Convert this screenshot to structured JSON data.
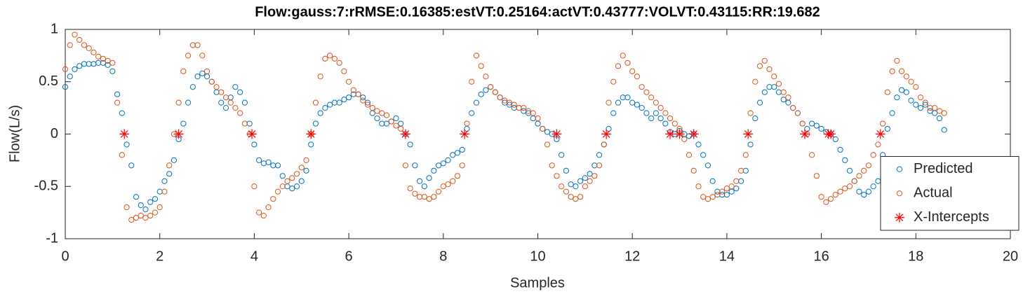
{
  "chart_data": {
    "type": "scatter",
    "title": "Flow:gauss:7:rRMSE:0.16385:estVT:0.25164:actVT:0.43777:VOLVT:0.43115:RR:19.682",
    "xlabel": "Samples",
    "ylabel": "Flow(L/s)",
    "xlim": [
      0,
      20
    ],
    "xticks": [
      0,
      2,
      4,
      6,
      8,
      10,
      12,
      14,
      16,
      18,
      20
    ],
    "ylim": [
      -1,
      1
    ],
    "yticks": [
      -1,
      -0.5,
      0,
      0.5,
      1
    ],
    "grid": false,
    "legend": "southeast",
    "x": [
      0,
      0.1,
      0.2,
      0.3,
      0.4,
      0.5,
      0.6,
      0.7,
      0.8,
      0.9,
      1,
      1.1,
      1.2,
      1.3,
      1.4,
      1.5,
      1.6,
      1.7,
      1.8,
      1.9,
      2,
      2.1,
      2.2,
      2.3,
      2.4,
      2.5,
      2.6,
      2.7,
      2.8,
      2.9,
      3,
      3.1,
      3.2,
      3.3,
      3.4,
      3.5,
      3.6,
      3.7,
      3.8,
      3.9,
      4,
      4.1,
      4.2,
      4.3,
      4.4,
      4.5,
      4.6,
      4.7,
      4.8,
      4.9,
      5,
      5.1,
      5.2,
      5.3,
      5.4,
      5.5,
      5.6,
      5.7,
      5.8,
      5.9,
      6,
      6.1,
      6.2,
      6.3,
      6.4,
      6.5,
      6.6,
      6.7,
      6.8,
      6.9,
      7,
      7.1,
      7.2,
      7.3,
      7.4,
      7.5,
      7.6,
      7.7,
      7.8,
      7.9,
      8,
      8.1,
      8.2,
      8.3,
      8.4,
      8.5,
      8.6,
      8.7,
      8.8,
      8.9,
      9,
      9.1,
      9.2,
      9.3,
      9.4,
      9.5,
      9.6,
      9.7,
      9.8,
      9.9,
      10,
      10.1,
      10.2,
      10.3,
      10.4,
      10.5,
      10.6,
      10.7,
      10.8,
      10.9,
      11,
      11.1,
      11.2,
      11.3,
      11.4,
      11.5,
      11.6,
      11.7,
      11.8,
      11.9,
      12,
      12.1,
      12.2,
      12.3,
      12.4,
      12.5,
      12.6,
      12.7,
      12.8,
      12.9,
      13,
      13.1,
      13.2,
      13.3,
      13.4,
      13.5,
      13.6,
      13.7,
      13.8,
      13.9,
      14,
      14.1,
      14.2,
      14.3,
      14.4,
      14.5,
      14.6,
      14.7,
      14.8,
      14.9,
      15,
      15.1,
      15.2,
      15.3,
      15.4,
      15.5,
      15.6,
      15.7,
      15.8,
      15.9,
      16,
      16.1,
      16.2,
      16.3,
      16.4,
      16.5,
      16.6,
      16.7,
      16.8,
      16.9,
      17,
      17.1,
      17.2,
      17.3,
      17.4,
      17.5,
      17.6,
      17.7,
      17.8,
      17.9,
      18,
      18.1,
      18.2,
      18.3,
      18.4,
      18.5,
      18.6
    ],
    "series": [
      {
        "name": "Predicted",
        "color": "#0072bd",
        "marker": "circle",
        "values": [
          0.45,
          0.55,
          0.62,
          0.65,
          0.67,
          0.67,
          0.67,
          0.68,
          0.68,
          0.66,
          0.6,
          0.38,
          0.2,
          -0.1,
          -0.3,
          -0.6,
          -0.68,
          -0.72,
          -0.65,
          -0.62,
          -0.55,
          -0.45,
          -0.38,
          -0.25,
          -0.05,
          0.1,
          0.3,
          0.45,
          0.55,
          0.58,
          0.55,
          0.5,
          0.4,
          0.3,
          0.25,
          0.35,
          0.45,
          0.4,
          0.3,
          0.1,
          -0.1,
          -0.25,
          -0.28,
          -0.27,
          -0.3,
          -0.3,
          -0.4,
          -0.5,
          -0.52,
          -0.5,
          -0.45,
          -0.35,
          -0.1,
          0.1,
          0.2,
          0.25,
          0.28,
          0.3,
          0.3,
          0.33,
          0.35,
          0.38,
          0.38,
          0.35,
          0.3,
          0.2,
          0.15,
          0.1,
          0.1,
          0.12,
          0.15,
          0.1,
          0,
          -0.1,
          -0.3,
          -0.45,
          -0.5,
          -0.42,
          -0.35,
          -0.3,
          -0.28,
          -0.25,
          -0.2,
          -0.18,
          -0.15,
          0.05,
          0.2,
          0.3,
          0.38,
          0.42,
          0.45,
          0.4,
          0.35,
          0.3,
          0.28,
          0.25,
          0.25,
          0.22,
          0.2,
          0.15,
          0.1,
          0.05,
          0.02,
          0,
          -0.05,
          -0.2,
          -0.35,
          -0.48,
          -0.5,
          -0.45,
          -0.42,
          -0.38,
          -0.3,
          -0.2,
          -0.1,
          0.05,
          0.2,
          0.3,
          0.35,
          0.35,
          0.3,
          0.28,
          0.25,
          0.2,
          0.15,
          0.2,
          0.15,
          0.1,
          0.02,
          0,
          0.03,
          0,
          -0.02,
          0,
          -0.1,
          -0.2,
          -0.3,
          -0.45,
          -0.55,
          -0.58,
          -0.58,
          -0.55,
          -0.52,
          -0.45,
          -0.35,
          -0.1,
          0.15,
          0.3,
          0.4,
          0.45,
          0.45,
          0.4,
          0.33,
          0.3,
          0.25,
          0.2,
          0.1,
          0.05,
          0.1,
          0.08,
          0.05,
          0.02,
          0,
          -0.05,
          -0.15,
          -0.25,
          -0.35,
          -0.45,
          -0.55,
          -0.58,
          -0.55,
          -0.5,
          -0.45,
          -0.2,
          0.05,
          0.2,
          0.35,
          0.42,
          0.4,
          0.32,
          0.28,
          0.25,
          0.28,
          0.22,
          0.2,
          0.15,
          0.04
        ]
      },
      {
        "name": "Actual",
        "color": "#d95319",
        "marker": "circle",
        "values": [
          0.62,
          0.85,
          0.95,
          0.9,
          0.85,
          0.82,
          0.78,
          0.74,
          0.72,
          0.7,
          0.68,
          0.3,
          -0.2,
          -0.7,
          -0.82,
          -0.8,
          -0.78,
          -0.8,
          -0.78,
          -0.75,
          -0.7,
          -0.55,
          -0.3,
          0,
          0.3,
          0.6,
          0.75,
          0.85,
          0.85,
          0.75,
          0.6,
          0.5,
          0.45,
          0.4,
          0.35,
          0.3,
          0.25,
          0.2,
          0.1,
          0,
          -0.5,
          -0.75,
          -0.78,
          -0.7,
          -0.62,
          -0.55,
          -0.5,
          -0.45,
          -0.42,
          -0.38,
          -0.32,
          -0.25,
          0,
          0.3,
          0.55,
          0.72,
          0.75,
          0.72,
          0.68,
          0.6,
          0.5,
          0.42,
          0.38,
          0.32,
          0.28,
          0.25,
          0.22,
          0.2,
          0.18,
          0.12,
          0.08,
          0.05,
          -0.3,
          -0.52,
          -0.57,
          -0.6,
          -0.6,
          -0.62,
          -0.6,
          -0.55,
          -0.5,
          -0.48,
          -0.45,
          -0.4,
          -0.3,
          0.1,
          0.5,
          0.75,
          0.65,
          0.55,
          0.45,
          0.4,
          0.35,
          0.32,
          0.3,
          0.28,
          0.25,
          0.25,
          0.22,
          0.2,
          0.15,
          0.05,
          -0.1,
          -0.3,
          -0.4,
          -0.5,
          -0.55,
          -0.6,
          -0.62,
          -0.6,
          -0.5,
          -0.45,
          -0.4,
          -0.3,
          -0.1,
          0.3,
          0.5,
          0.65,
          0.75,
          0.68,
          0.6,
          0.55,
          0.45,
          0.4,
          0.35,
          0.3,
          0.25,
          0.2,
          0.15,
          0.1,
          0.05,
          -0.05,
          -0.2,
          -0.35,
          -0.5,
          -0.6,
          -0.62,
          -0.6,
          -0.58,
          -0.55,
          -0.52,
          -0.5,
          -0.45,
          -0.35,
          -0.2,
          0.2,
          0.5,
          0.65,
          0.7,
          0.62,
          0.55,
          0.48,
          0.4,
          0.35,
          0.25,
          0.2,
          0.1,
          0,
          -0.2,
          -0.4,
          -0.6,
          -0.65,
          -0.62,
          -0.58,
          -0.55,
          -0.52,
          -0.5,
          -0.45,
          -0.4,
          -0.35,
          -0.3,
          -0.2,
          -0.1,
          0.1,
          0.4,
          0.6,
          0.7,
          0.6,
          0.55,
          0.5,
          0.45,
          0.35,
          0.3,
          0.25,
          0.25,
          0.22,
          0.2
        ]
      },
      {
        "name": "X-Intercepts",
        "color": "#ff0000",
        "marker": "star",
        "x": [
          1.25,
          2.4,
          3.95,
          5.2,
          7.2,
          8.45,
          10.4,
          11.45,
          12.8,
          13.0,
          13.3,
          14.45,
          15.65,
          16.15,
          16.2,
          17.25
        ],
        "values": [
          0,
          0,
          0,
          0,
          0,
          0,
          0,
          0,
          0,
          0,
          0,
          0,
          0,
          0,
          0,
          0
        ]
      }
    ]
  }
}
